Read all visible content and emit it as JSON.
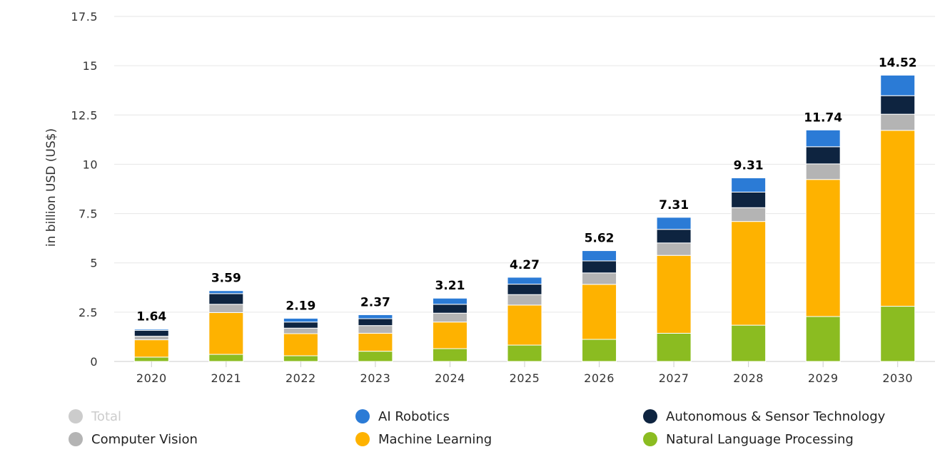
{
  "chart_data": {
    "type": "bar",
    "stacked": true,
    "ylabel": "in billion USD (US$)",
    "ylim": [
      0,
      17.5
    ],
    "yticks": [
      "0",
      "2.5",
      "5",
      "7.5",
      "10",
      "12.5",
      "15",
      "17.5"
    ],
    "ytick_values": [
      0,
      2.5,
      5,
      7.5,
      10,
      12.5,
      15,
      17.5
    ],
    "categories": [
      "2020",
      "2021",
      "2022",
      "2023",
      "2024",
      "2025",
      "2026",
      "2027",
      "2028",
      "2029",
      "2030"
    ],
    "totals": [
      1.64,
      3.59,
      2.19,
      2.37,
      3.21,
      4.27,
      5.62,
      7.31,
      9.31,
      11.74,
      14.52
    ],
    "total_labels": [
      "1.64",
      "3.59",
      "2.19",
      "2.37",
      "3.21",
      "4.27",
      "5.62",
      "7.31",
      "9.31",
      "11.74",
      "14.52"
    ],
    "grid": true,
    "legend_position": "bottom",
    "series": [
      {
        "name": "Natural Language Processing",
        "color": "#8bbc21",
        "values": [
          0.22,
          0.36,
          0.29,
          0.52,
          0.65,
          0.83,
          1.12,
          1.43,
          1.84,
          2.28,
          2.8
        ]
      },
      {
        "name": "Machine Learning",
        "color": "#feb200",
        "values": [
          0.88,
          2.12,
          1.12,
          0.91,
          1.35,
          2.03,
          2.79,
          3.95,
          5.26,
          6.95,
          8.92
        ]
      },
      {
        "name": "Computer Vision",
        "color": "#b4b4b4",
        "values": [
          0.18,
          0.42,
          0.28,
          0.39,
          0.45,
          0.53,
          0.58,
          0.63,
          0.7,
          0.79,
          0.82
        ]
      },
      {
        "name": "Autonomous & Sensor Technology",
        "color": "#0e2440",
        "values": [
          0.3,
          0.54,
          0.31,
          0.35,
          0.45,
          0.53,
          0.61,
          0.69,
          0.79,
          0.87,
          0.94
        ]
      },
      {
        "name": "AI Robotics",
        "color": "#2b7bd6",
        "values": [
          0.06,
          0.15,
          0.19,
          0.2,
          0.31,
          0.35,
          0.52,
          0.61,
          0.72,
          0.85,
          1.04
        ]
      }
    ]
  },
  "legend": [
    {
      "label": "Total",
      "color": "#cccccc",
      "enabled": false
    },
    {
      "label": "AI Robotics",
      "color": "#2b7bd6",
      "enabled": true
    },
    {
      "label": "Autonomous & Sensor Technology",
      "color": "#0e2440",
      "enabled": true
    },
    {
      "label": "Computer Vision",
      "color": "#b4b4b4",
      "enabled": true
    },
    {
      "label": "Machine Learning",
      "color": "#feb200",
      "enabled": true
    },
    {
      "label": "Natural Language Processing",
      "color": "#8bbc21",
      "enabled": true
    }
  ]
}
